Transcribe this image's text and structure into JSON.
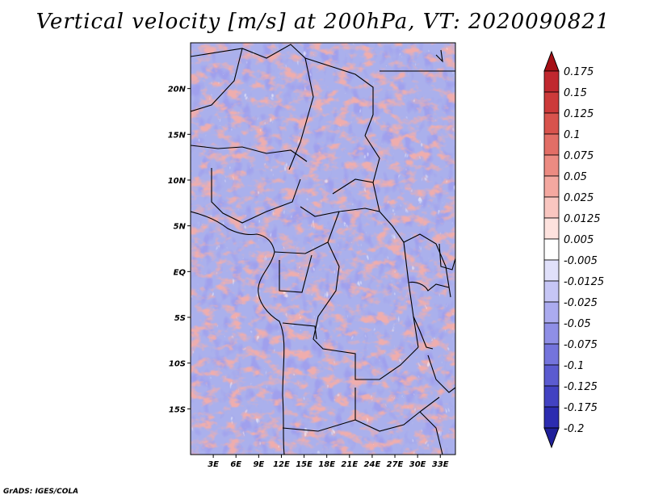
{
  "title": "Vertical velocity [m/s] at 200hPa, VT: 2020090821",
  "footer": "GrADS: IGES/COLA",
  "map": {
    "lat_range": [
      -20,
      25
    ],
    "lon_range": [
      0,
      35
    ],
    "lat_ticks": [
      {
        "value": 20,
        "label": "20N"
      },
      {
        "value": 15,
        "label": "15N"
      },
      {
        "value": 10,
        "label": "10N"
      },
      {
        "value": 5,
        "label": "5N"
      },
      {
        "value": 0,
        "label": "EQ"
      },
      {
        "value": -5,
        "label": "5S"
      },
      {
        "value": -10,
        "label": "10S"
      },
      {
        "value": -15,
        "label": "15S"
      }
    ],
    "lon_ticks": [
      {
        "value": 3,
        "label": "3E"
      },
      {
        "value": 6,
        "label": "6E"
      },
      {
        "value": 9,
        "label": "9E"
      },
      {
        "value": 12,
        "label": "12E"
      },
      {
        "value": 15,
        "label": "15E"
      },
      {
        "value": 18,
        "label": "18E"
      },
      {
        "value": 21,
        "label": "21E"
      },
      {
        "value": 24,
        "label": "24E"
      },
      {
        "value": 27,
        "label": "27E"
      },
      {
        "value": 30,
        "label": "30E"
      },
      {
        "value": 33,
        "label": "33E"
      }
    ]
  },
  "colorbar": {
    "levels": [
      {
        "label": "0.175",
        "color": "#b2182b"
      },
      {
        "label": "0.15",
        "color": "#c0282f"
      },
      {
        "label": "0.125",
        "color": "#cc3a3a"
      },
      {
        "label": "0.1",
        "color": "#d8534d"
      },
      {
        "label": "0.075",
        "color": "#e26e66"
      },
      {
        "label": "0.05",
        "color": "#ec8b82"
      },
      {
        "label": "0.025",
        "color": "#f4a8a0"
      },
      {
        "label": "0.0125",
        "color": "#f9c6c0"
      },
      {
        "label": "0.005",
        "color": "#fde2de"
      },
      {
        "label": "-0.005",
        "color": "#ffffff"
      },
      {
        "label": "-0.0125",
        "color": "#e0e0fa"
      },
      {
        "label": "-0.025",
        "color": "#c6c6f5"
      },
      {
        "label": "-0.05",
        "color": "#ababef"
      },
      {
        "label": "-0.075",
        "color": "#8f8fe6"
      },
      {
        "label": "-0.1",
        "color": "#7474dc"
      },
      {
        "label": "-0.125",
        "color": "#5b5bd0"
      },
      {
        "label": "-0.175",
        "color": "#4242c2"
      },
      {
        "label": "-0.2",
        "color": "#2c2cb0"
      }
    ],
    "top_color": "#a50f15",
    "bottom_color": "#20209a"
  }
}
